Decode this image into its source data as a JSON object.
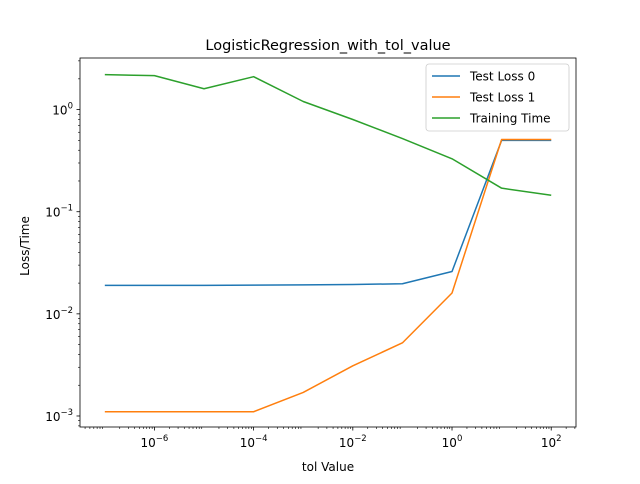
{
  "chart_data": {
    "type": "line",
    "title": "LogisticRegression_with_tol_value",
    "xlabel": "tol Value",
    "ylabel": "Loss/Time",
    "xscale": "log",
    "yscale": "log",
    "xlim": [
      3.16e-08,
      316
    ],
    "ylim": [
      0.00078,
      3.2
    ],
    "x_ticks": [
      {
        "value": 1e-06,
        "base": "10",
        "exp": "−6"
      },
      {
        "value": 0.0001,
        "base": "10",
        "exp": "−4"
      },
      {
        "value": 0.01,
        "base": "10",
        "exp": "−2"
      },
      {
        "value": 1,
        "base": "10",
        "exp": "0"
      },
      {
        "value": 100,
        "base": "10",
        "exp": "2"
      }
    ],
    "y_ticks": [
      {
        "value": 0.001,
        "base": "10",
        "exp": "−3"
      },
      {
        "value": 0.01,
        "base": "10",
        "exp": "−2"
      },
      {
        "value": 0.1,
        "base": "10",
        "exp": "−1"
      },
      {
        "value": 1,
        "base": "10",
        "exp": "0"
      }
    ],
    "grid": false,
    "legend_position": "top-right",
    "x": [
      1e-07,
      1e-06,
      1e-05,
      0.0001,
      0.001,
      0.01,
      0.1,
      1,
      10,
      100
    ],
    "series": [
      {
        "name": "Test Loss 0",
        "color": "#1f77b4",
        "values": [
          0.019,
          0.019,
          0.019,
          0.0191,
          0.0192,
          0.0194,
          0.0197,
          0.026,
          0.5,
          0.5
        ]
      },
      {
        "name": "Test Loss 1",
        "color": "#ff7f0e",
        "values": [
          0.0011,
          0.0011,
          0.0011,
          0.0011,
          0.0017,
          0.0031,
          0.0052,
          0.016,
          0.51,
          0.51
        ]
      },
      {
        "name": "Training Time",
        "color": "#2ca02c",
        "values": [
          2.2,
          2.15,
          1.6,
          2.1,
          1.2,
          0.8,
          0.52,
          0.33,
          0.17,
          0.145
        ]
      }
    ]
  }
}
